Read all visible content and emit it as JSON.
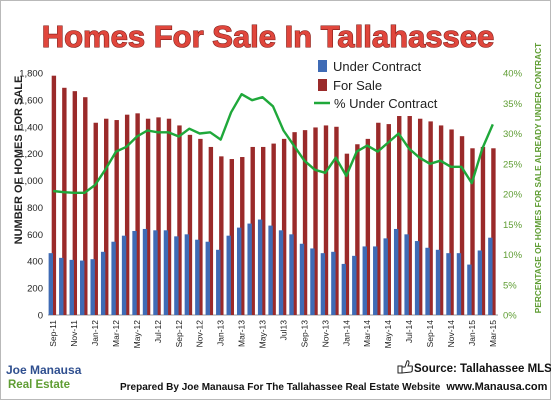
{
  "title": "Homes For Sale In Tallahassee",
  "source": "Source: Tallahassee MLS",
  "footer": {
    "text": "Prepared By Joe Manausa For The Tallahassee Real Estate Website",
    "website": "www.Manausa.com"
  },
  "logo": {
    "line1": "Joe Manausa",
    "line2": "Real Estate"
  },
  "colors": {
    "under_contract": "#3f6bb5",
    "for_sale": "#9a2a2a",
    "pct_line": "#1fa83a",
    "title_fill": "#e0463c",
    "right_axis": "#5f9d33"
  },
  "icons": {
    "source_icon": "thumbs-up-icon"
  },
  "chart_data": {
    "type": "bar",
    "title": "Homes For Sale In Tallahassee",
    "ylabel": "NUMBER OF HOMES FOR SALE",
    "ylabel_right": "PERCENTAGE OF HOMES FOR SALE ALREADY UNDER CONTRACT",
    "ylim": [
      0,
      1800
    ],
    "yticks": [
      "0",
      "200",
      "400",
      "600",
      "800",
      "1,000",
      "1,200",
      "1,400",
      "1,600",
      "1,800"
    ],
    "ylim_right": [
      0,
      40
    ],
    "yticks_right": [
      "0%",
      "5%",
      "10%",
      "15%",
      "20%",
      "25%",
      "30%",
      "35%",
      "40%"
    ],
    "legend_position": "top-center",
    "grid": false,
    "x": [
      "Sep-11",
      "Oct-11",
      "Nov-11",
      "Dec-11",
      "Jan-12",
      "Feb-12",
      "Mar-12",
      "Apr-12",
      "May-12",
      "Jun-12",
      "Jul-12",
      "Aug-12",
      "Sep-12",
      "Oct-12",
      "Nov-12",
      "Dec-12",
      "Jan-13",
      "Feb-13",
      "Mar-13",
      "Apr-13",
      "May-13",
      "Jun-13",
      "Jul-13",
      "Aug-13",
      "Sep-13",
      "Oct-13",
      "Nov-13",
      "Dec-13",
      "Jan-14",
      "Feb-14",
      "Mar-14",
      "Apr-14",
      "May-14",
      "Jun-14",
      "Jul-14",
      "Aug-14",
      "Sep-14",
      "Oct-14",
      "Nov-14",
      "Dec-14",
      "Jan-15",
      "Feb-15",
      "Mar-15"
    ],
    "x_tick_labels": [
      "Sep-11",
      "Nov-11",
      "Jan-12",
      "Mar-12",
      "May-12",
      "Jul-12",
      "Sep-12",
      "Nov-12",
      "Jan-13",
      "Mar-13",
      "May-13",
      "Jul13",
      "Sep-13",
      "Nov-13",
      "Jan-14",
      "Mar-14",
      "May-14",
      "Jul-14",
      "Sep-14",
      "Nov-14",
      "Jan-15",
      "Mar-15"
    ],
    "series": [
      {
        "name": "Under Contract",
        "type": "bar",
        "axis": "left",
        "values": [
          460,
          425,
          410,
          405,
          415,
          470,
          545,
          590,
          625,
          640,
          630,
          630,
          585,
          600,
          560,
          545,
          485,
          590,
          650,
          680,
          710,
          665,
          630,
          600,
          530,
          495,
          460,
          470,
          380,
          440,
          510,
          510,
          570,
          640,
          600,
          550,
          500,
          485,
          460,
          460,
          375,
          480,
          575
        ]
      },
      {
        "name": "For Sale",
        "type": "bar",
        "axis": "left",
        "values": [
          1780,
          1690,
          1665,
          1620,
          1430,
          1460,
          1450,
          1490,
          1500,
          1460,
          1470,
          1460,
          1410,
          1340,
          1310,
          1250,
          1180,
          1160,
          1175,
          1250,
          1250,
          1275,
          1310,
          1360,
          1375,
          1395,
          1410,
          1400,
          1200,
          1270,
          1310,
          1430,
          1420,
          1480,
          1480,
          1460,
          1440,
          1410,
          1380,
          1330,
          1240,
          1250,
          1240
        ]
      },
      {
        "name": "% Under Contract",
        "type": "line",
        "axis": "right",
        "values": [
          20.5,
          20.3,
          20.2,
          20.2,
          21.5,
          24.1,
          27.0,
          27.8,
          29.5,
          30.5,
          30.2,
          30.2,
          29.5,
          30.8,
          30.0,
          30.2,
          29.0,
          33.5,
          36.5,
          35.5,
          36.0,
          34.5,
          30.5,
          28.0,
          25.5,
          24.0,
          23.5,
          26.0,
          23.0,
          27.0,
          28.0,
          27.0,
          28.5,
          30.0,
          27.5,
          26.0,
          25.0,
          25.5,
          24.5,
          24.5,
          21.8,
          27.5,
          31.5
        ]
      }
    ]
  }
}
